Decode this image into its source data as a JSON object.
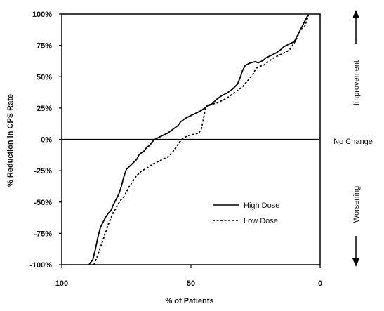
{
  "chart_data": {
    "type": "line",
    "title": "",
    "xlabel": "% of Patients",
    "ylabel": "% Reduction in CPS Rate",
    "xlim": [
      100,
      0
    ],
    "ylim": [
      -100,
      100
    ],
    "x_reversed": true,
    "x_ticks": [
      100,
      50,
      0
    ],
    "y_tick_labels": [
      "100%",
      "75%",
      "50%",
      "25%",
      "0%",
      "-25%",
      "-50%",
      "-75%",
      "-100%"
    ],
    "y_tick_values": [
      100,
      75,
      50,
      25,
      0,
      -25,
      -50,
      -75,
      -100
    ],
    "x_tick_labels": [
      "100",
      "50",
      "0"
    ],
    "reference_line": {
      "y": 0,
      "label": "No Change"
    },
    "side_labels": {
      "top": "Improvement",
      "bottom": "Worsening"
    },
    "grid": false,
    "legend": {
      "placement": "lower-right"
    },
    "series": [
      {
        "name": "High Dose",
        "style": "solid",
        "color": "#000000",
        "points": [
          [
            89.5,
            -100
          ],
          [
            88,
            -96
          ],
          [
            87,
            -88
          ],
          [
            86,
            -78
          ],
          [
            85,
            -70
          ],
          [
            84,
            -66
          ],
          [
            83,
            -62
          ],
          [
            82,
            -59
          ],
          [
            81,
            -57
          ],
          [
            80,
            -52
          ],
          [
            78,
            -44
          ],
          [
            77,
            -38
          ],
          [
            76,
            -30
          ],
          [
            75,
            -24
          ],
          [
            73,
            -20
          ],
          [
            71,
            -16
          ],
          [
            70,
            -12
          ],
          [
            68,
            -9
          ],
          [
            67,
            -6
          ],
          [
            66,
            -5
          ],
          [
            65,
            -2
          ],
          [
            64,
            0
          ],
          [
            62,
            2
          ],
          [
            61,
            3
          ],
          [
            59,
            5
          ],
          [
            57,
            8
          ],
          [
            55,
            11
          ],
          [
            54,
            14
          ],
          [
            52,
            17
          ],
          [
            50,
            19
          ],
          [
            48,
            21
          ],
          [
            46,
            23
          ],
          [
            44,
            26
          ],
          [
            42,
            28
          ],
          [
            40,
            32
          ],
          [
            38,
            35
          ],
          [
            36,
            37
          ],
          [
            34,
            40
          ],
          [
            32,
            44
          ],
          [
            31,
            49
          ],
          [
            30,
            55
          ],
          [
            29,
            59
          ],
          [
            27,
            61
          ],
          [
            25,
            62
          ],
          [
            24,
            61
          ],
          [
            22,
            63
          ],
          [
            21,
            65
          ],
          [
            19,
            67
          ],
          [
            17,
            69
          ],
          [
            15,
            72
          ],
          [
            14,
            74
          ],
          [
            12,
            76
          ],
          [
            11,
            77
          ],
          [
            10,
            78
          ],
          [
            9,
            82
          ],
          [
            8,
            86
          ],
          [
            7,
            90
          ],
          [
            6,
            94
          ],
          [
            5,
            98
          ],
          [
            4.5,
            99
          ]
        ]
      },
      {
        "name": "Low Dose",
        "style": "dashed",
        "color": "#000000",
        "points": [
          [
            87.5,
            -100
          ],
          [
            86,
            -92
          ],
          [
            85,
            -86
          ],
          [
            84,
            -80
          ],
          [
            83,
            -74
          ],
          [
            82,
            -68
          ],
          [
            81,
            -63
          ],
          [
            80,
            -58
          ],
          [
            79,
            -55
          ],
          [
            78,
            -51
          ],
          [
            77,
            -48
          ],
          [
            76,
            -46
          ],
          [
            75,
            -42
          ],
          [
            74,
            -38
          ],
          [
            73,
            -35
          ],
          [
            72,
            -32
          ],
          [
            71,
            -29
          ],
          [
            70,
            -27
          ],
          [
            69,
            -25
          ],
          [
            67,
            -23
          ],
          [
            65,
            -20
          ],
          [
            63,
            -18
          ],
          [
            61,
            -16
          ],
          [
            59,
            -14
          ],
          [
            58,
            -12
          ],
          [
            57,
            -10
          ],
          [
            56,
            -7
          ],
          [
            55,
            -4
          ],
          [
            54,
            -1
          ],
          [
            53,
            1
          ],
          [
            51,
            3
          ],
          [
            49,
            4
          ],
          [
            47,
            5
          ],
          [
            46,
            8
          ],
          [
            45.5,
            13
          ],
          [
            45,
            18
          ],
          [
            44.5,
            24
          ],
          [
            44,
            27
          ],
          [
            42,
            28
          ],
          [
            40,
            29
          ],
          [
            38,
            31
          ],
          [
            36,
            33
          ],
          [
            34,
            36
          ],
          [
            32,
            39
          ],
          [
            30,
            42
          ],
          [
            28,
            47
          ],
          [
            26,
            52
          ],
          [
            25,
            56
          ],
          [
            24,
            58
          ],
          [
            22,
            59
          ],
          [
            20,
            62
          ],
          [
            18,
            65
          ],
          [
            16,
            67
          ],
          [
            14,
            69
          ],
          [
            12,
            71
          ],
          [
            11,
            74
          ],
          [
            10,
            77
          ],
          [
            9,
            81
          ],
          [
            8,
            86
          ],
          [
            7,
            88
          ],
          [
            6,
            90
          ],
          [
            5,
            96
          ],
          [
            4.5,
            99
          ]
        ]
      }
    ]
  }
}
